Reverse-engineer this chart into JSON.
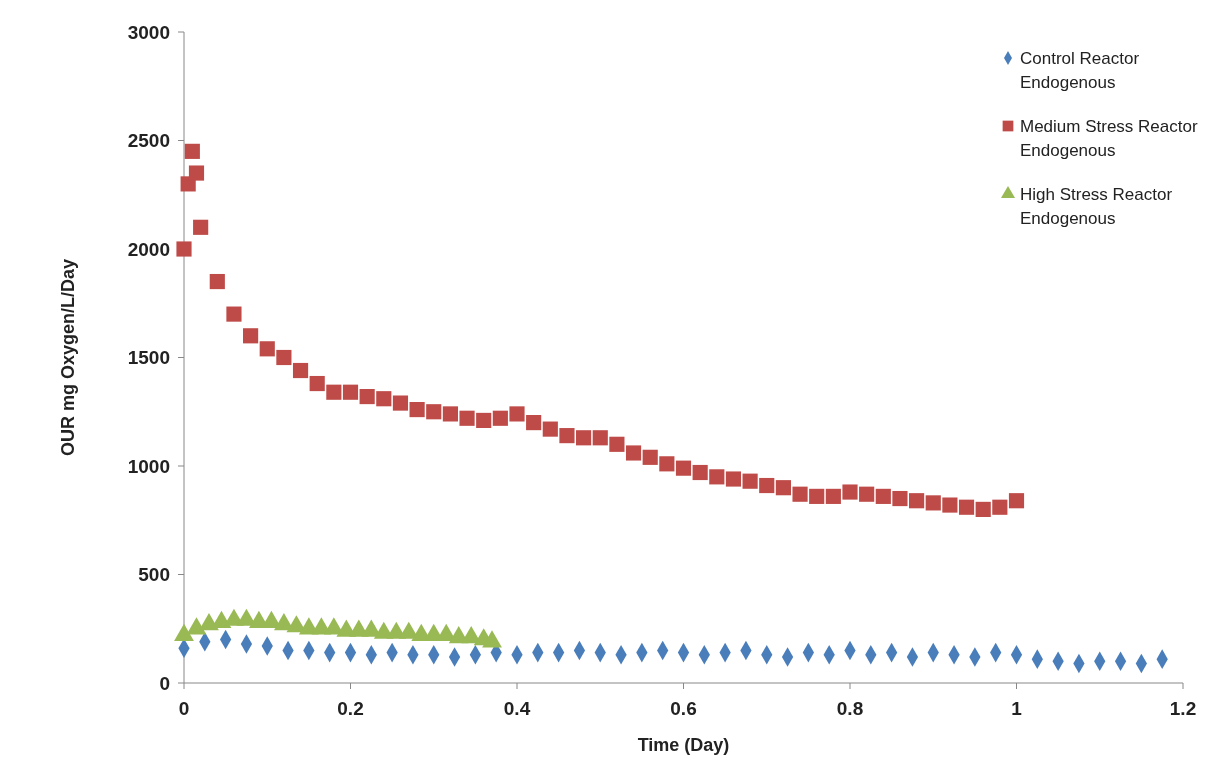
{
  "chart_data": {
    "type": "scatter",
    "xlabel": "Time (Day)",
    "ylabel": "OUR mg Oxygen/L/Day",
    "xlim": [
      0,
      1.2
    ],
    "xticks": [
      0,
      0.2,
      0.4,
      0.6,
      0.8,
      1,
      1.2
    ],
    "ylim": [
      0,
      3000
    ],
    "yticks": [
      0,
      500,
      1000,
      1500,
      2000,
      2500,
      3000
    ],
    "grid": false,
    "legend": "top right",
    "series": [
      {
        "name": "Control Reactor Endogenous",
        "color": "#4a7ebb",
        "marker": "diamond",
        "x": [
          0,
          0.025,
          0.05,
          0.075,
          0.1,
          0.125,
          0.15,
          0.175,
          0.2,
          0.225,
          0.25,
          0.275,
          0.3,
          0.325,
          0.35,
          0.375,
          0.4,
          0.425,
          0.45,
          0.475,
          0.5,
          0.525,
          0.55,
          0.575,
          0.6,
          0.625,
          0.65,
          0.675,
          0.7,
          0.725,
          0.75,
          0.775,
          0.8,
          0.825,
          0.85,
          0.875,
          0.9,
          0.925,
          0.95,
          0.975,
          1,
          1.025,
          1.05,
          1.075,
          1.1,
          1.125,
          1.15,
          1.175
        ],
        "values": [
          160,
          190,
          200,
          180,
          170,
          150,
          150,
          140,
          140,
          130,
          140,
          130,
          130,
          120,
          130,
          140,
          130,
          140,
          140,
          150,
          140,
          130,
          140,
          150,
          140,
          130,
          140,
          150,
          130,
          120,
          140,
          130,
          150,
          130,
          140,
          120,
          140,
          130,
          120,
          140,
          130,
          110,
          100,
          90,
          100,
          100,
          90,
          110
        ]
      },
      {
        "name": "Medium Stress Reactor Endogenous",
        "color": "#be4b48",
        "marker": "square",
        "x": [
          0,
          0.005,
          0.01,
          0.015,
          0.02,
          0.04,
          0.06,
          0.08,
          0.1,
          0.12,
          0.14,
          0.16,
          0.18,
          0.2,
          0.22,
          0.24,
          0.26,
          0.28,
          0.3,
          0.32,
          0.34,
          0.36,
          0.38,
          0.4,
          0.42,
          0.44,
          0.46,
          0.48,
          0.5,
          0.52,
          0.54,
          0.56,
          0.58,
          0.6,
          0.62,
          0.64,
          0.66,
          0.68,
          0.7,
          0.72,
          0.74,
          0.76,
          0.78,
          0.8,
          0.82,
          0.84,
          0.86,
          0.88,
          0.9,
          0.92,
          0.94,
          0.96,
          0.98,
          1
        ],
        "values": [
          2000,
          2300,
          2450,
          2350,
          2100,
          1850,
          1700,
          1600,
          1540,
          1500,
          1440,
          1380,
          1340,
          1340,
          1320,
          1310,
          1290,
          1260,
          1250,
          1240,
          1220,
          1210,
          1220,
          1240,
          1200,
          1170,
          1140,
          1130,
          1130,
          1100,
          1060,
          1040,
          1010,
          990,
          970,
          950,
          940,
          930,
          910,
          900,
          870,
          860,
          860,
          880,
          870,
          860,
          850,
          840,
          830,
          820,
          810,
          800,
          810,
          840
        ]
      },
      {
        "name": "High Stress Reactor Endogenous",
        "color": "#98b954",
        "marker": "triangle",
        "x": [
          0,
          0.015,
          0.03,
          0.045,
          0.06,
          0.075,
          0.09,
          0.105,
          0.12,
          0.135,
          0.15,
          0.165,
          0.18,
          0.195,
          0.21,
          0.225,
          0.24,
          0.255,
          0.27,
          0.285,
          0.3,
          0.315,
          0.33,
          0.345,
          0.36,
          0.37
        ],
        "values": [
          220,
          250,
          270,
          280,
          290,
          290,
          280,
          280,
          270,
          260,
          250,
          250,
          250,
          240,
          240,
          240,
          230,
          230,
          230,
          220,
          220,
          220,
          210,
          210,
          200,
          190
        ]
      }
    ]
  }
}
